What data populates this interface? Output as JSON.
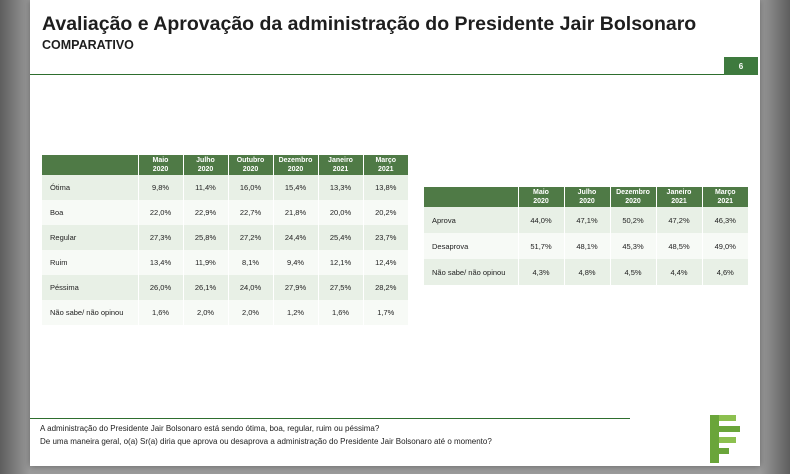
{
  "header": {
    "title": "Avaliação e Aprovação da administração do Presidente Jair Bolsonaro",
    "subtitle": "COMPARATIVO",
    "page_number": "6"
  },
  "table_evaluation": {
    "columns": [
      {
        "month": "Maio",
        "year": "2020"
      },
      {
        "month": "Julho",
        "year": "2020"
      },
      {
        "month": "Outubro",
        "year": "2020"
      },
      {
        "month": "Dezembro",
        "year": "2020"
      },
      {
        "month": "Janeiro",
        "year": "2021"
      },
      {
        "month": "Março",
        "year": "2021"
      }
    ],
    "rows": [
      {
        "label": "Ótima",
        "values": [
          "9,8%",
          "11,4%",
          "16,0%",
          "15,4%",
          "13,3%",
          "13,8%"
        ]
      },
      {
        "label": "Boa",
        "values": [
          "22,0%",
          "22,9%",
          "22,7%",
          "21,8%",
          "20,0%",
          "20,2%"
        ]
      },
      {
        "label": "Regular",
        "values": [
          "27,3%",
          "25,8%",
          "27,2%",
          "24,4%",
          "25,4%",
          "23,7%"
        ]
      },
      {
        "label": "Ruim",
        "values": [
          "13,4%",
          "11,9%",
          "8,1%",
          "9,4%",
          "12,1%",
          "12,4%"
        ]
      },
      {
        "label": "Péssima",
        "values": [
          "26,0%",
          "26,1%",
          "24,0%",
          "27,9%",
          "27,5%",
          "28,2%"
        ]
      },
      {
        "label": "Não sabe/  não opinou",
        "values": [
          "1,6%",
          "2,0%",
          "2,0%",
          "1,2%",
          "1,6%",
          "1,7%"
        ]
      }
    ]
  },
  "table_approval": {
    "columns": [
      {
        "month": "Maio",
        "year": "2020"
      },
      {
        "month": "Julho",
        "year": "2020"
      },
      {
        "month": "Dezembro",
        "year": "2020"
      },
      {
        "month": "Janeiro",
        "year": "2021"
      },
      {
        "month": "Março",
        "year": "2021"
      }
    ],
    "rows": [
      {
        "label": "Aprova",
        "values": [
          "44,0%",
          "47,1%",
          "50,2%",
          "47,2%",
          "46,3%"
        ]
      },
      {
        "label": "Desaprova",
        "values": [
          "51,7%",
          "48,1%",
          "45,3%",
          "48,5%",
          "49,0%"
        ]
      },
      {
        "label": "Não sabe/  não opinou",
        "values": [
          "4,3%",
          "4,8%",
          "4,5%",
          "4,4%",
          "4,6%"
        ]
      }
    ]
  },
  "footer": {
    "question_1": "A administração do Presidente Jair Bolsonaro está sendo ótima, boa, regular, ruim ou péssima?",
    "question_2": "De uma maneira geral, o(a) Sr(a) diria que aprova ou desaprova a administração do Presidente Jair Bolsonaro até o momento?"
  },
  "colors": {
    "header_green": "#4f7a46",
    "row_band": "#e8f0e6",
    "logo_green": "#6aa53a"
  },
  "logo_icon": "pollster-logo-icon"
}
